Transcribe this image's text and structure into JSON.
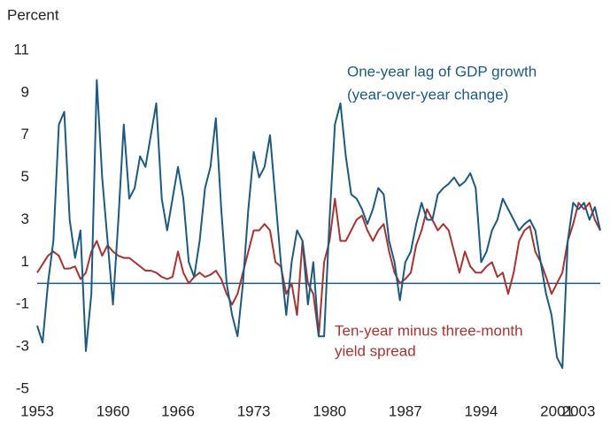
{
  "chart_data": {
    "type": "line",
    "y_axis_label": "Percent",
    "annotations": [
      "One-year lag of GDP growth",
      "(year-over-year change)",
      "Ten-year minus three-month",
      "yield spread"
    ],
    "x": [
      1953,
      1953.5,
      1954,
      1954.5,
      1955,
      1955.5,
      1956,
      1956.5,
      1957,
      1957.5,
      1958,
      1958.5,
      1959,
      1959.5,
      1960,
      1960.5,
      1961,
      1961.5,
      1962,
      1962.5,
      1963,
      1963.5,
      1964,
      1964.5,
      1965,
      1965.5,
      1966,
      1966.5,
      1967,
      1967.5,
      1968,
      1968.5,
      1969,
      1969.5,
      1970,
      1970.5,
      1971,
      1971.5,
      1972,
      1972.5,
      1973,
      1973.5,
      1974,
      1974.5,
      1975,
      1975.5,
      1976,
      1976.5,
      1977,
      1977.5,
      1978,
      1978.5,
      1979,
      1979.5,
      1980,
      1980.5,
      1981,
      1981.5,
      1982,
      1982.5,
      1983,
      1983.5,
      1984,
      1984.5,
      1985,
      1985.5,
      1986,
      1986.5,
      1987,
      1987.5,
      1988,
      1988.5,
      1989,
      1989.5,
      1990,
      1990.5,
      1991,
      1991.5,
      1992,
      1992.5,
      1993,
      1993.5,
      1994,
      1994.5,
      1995,
      1995.5,
      1996,
      1996.5,
      1997,
      1997.5,
      1998,
      1998.5,
      1999,
      1999.5,
      2000,
      2000.5,
      2001,
      2001.5,
      2002,
      2002.5,
      2003,
      2003.5,
      2004,
      2004.5,
      2005
    ],
    "series": [
      {
        "name": "One-year lag of GDP growth (year-over-year change)",
        "color": "#1b5b82",
        "values": [
          -2,
          -2.8,
          0,
          2,
          7.5,
          8.1,
          3,
          1.2,
          2.5,
          -3.2,
          -0.5,
          9.6,
          5,
          2,
          -1,
          3,
          7.5,
          4,
          4.5,
          6,
          5.5,
          7,
          8.5,
          4,
          2.5,
          4,
          5.5,
          4,
          1,
          0.3,
          2,
          4.5,
          5.5,
          7.8,
          3.5,
          0,
          -1.5,
          -2.5,
          0,
          3.5,
          6.2,
          5,
          5.5,
          7,
          4,
          1,
          -1.5,
          1,
          2.5,
          2,
          -1,
          1,
          -2.5,
          -2.5,
          3,
          7.5,
          8.5,
          6,
          4.2,
          4,
          3.5,
          2.8,
          3.5,
          4.5,
          4.2,
          2,
          1,
          -0.8,
          1,
          1.5,
          2.8,
          3.8,
          3,
          3,
          4.2,
          4.5,
          4.7,
          5,
          4.6,
          4.8,
          5.2,
          4.5,
          1,
          1.5,
          2.5,
          3,
          4,
          3.5,
          3,
          2.5,
          2.8,
          3,
          2.5,
          1,
          -0.5,
          -1.5,
          -3.5,
          -4,
          2,
          3.8,
          3.5,
          3.8,
          3,
          3.6,
          2.5
        ]
      },
      {
        "name": "Ten-year minus three-month yield spread",
        "color": "#a83330",
        "values": [
          0.5,
          0.9,
          1.3,
          1.5,
          1.3,
          0.7,
          0.7,
          0.8,
          0.2,
          0.5,
          1.5,
          2,
          1.3,
          1.8,
          1.5,
          1.3,
          1.2,
          1.2,
          1,
          0.8,
          0.6,
          0.6,
          0.5,
          0.3,
          0.2,
          0.3,
          1.5,
          0.5,
          0,
          0.3,
          0.5,
          0.3,
          0.4,
          0.6,
          0.2,
          -0.5,
          -1,
          -0.5,
          0.5,
          1.5,
          2.5,
          2.5,
          2.8,
          2.5,
          1,
          0.8,
          -0.5,
          0,
          -1.5,
          2,
          0,
          -0.5,
          -2.5,
          1,
          2,
          4,
          2,
          2,
          2.5,
          3,
          3.2,
          2.5,
          2,
          2.5,
          2.8,
          1.5,
          0.5,
          0,
          0.2,
          0.5,
          1.8,
          2.5,
          3.5,
          3,
          2.5,
          2.8,
          2.5,
          1.5,
          0.5,
          1.5,
          0.8,
          0.5,
          0.5,
          0.8,
          1,
          0.3,
          0.5,
          -0.5,
          0.5,
          2,
          2.5,
          2.7,
          1.5,
          1,
          0.3,
          -0.5,
          0,
          0.5,
          2,
          2.8,
          3.8,
          3.5,
          3.8,
          3,
          2.5
        ]
      }
    ],
    "xlim": [
      1953,
      2005
    ],
    "xticks": [
      1953,
      1960,
      1966,
      1973,
      1980,
      1987,
      1994,
      2001,
      2003
    ],
    "ylim": [
      -5,
      11
    ],
    "yticks": [
      -5,
      -3,
      -1,
      1,
      3,
      5,
      7,
      9,
      11
    ],
    "reference_line": 0
  }
}
